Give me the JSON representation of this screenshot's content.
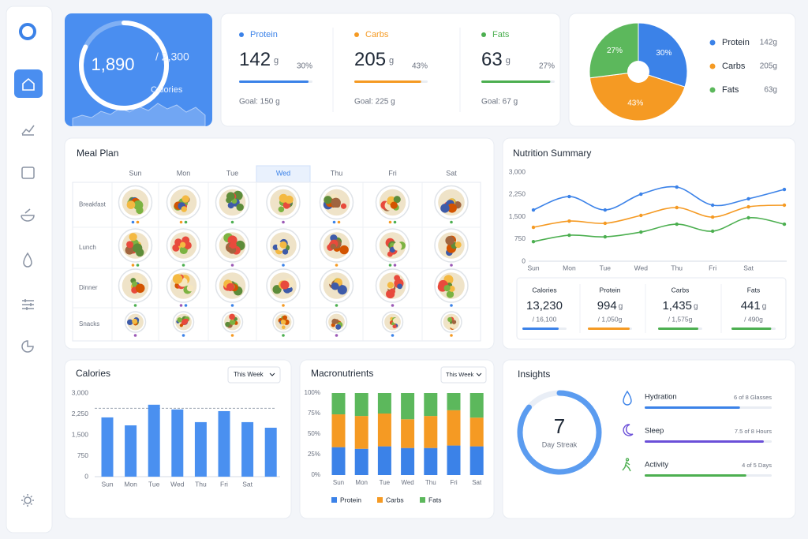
{
  "calorie_card": {
    "consumed": {
      "value": 1890,
      "label": "1,890"
    },
    "goal": {
      "value": 2300,
      "label": "/ 2,300"
    },
    "caption": "Calories"
  },
  "macros": [
    {
      "name": "Protein",
      "amount": 142,
      "unit": "g",
      "share": {
        "value": 30,
        "label": "30%"
      },
      "goal": {
        "value": 150,
        "label": "Goal: 150 g"
      },
      "color": "#3b82e8"
    },
    {
      "name": "Carbs",
      "amount": 205,
      "unit": "g",
      "share": {
        "value": 43,
        "label": "43%"
      },
      "goal": {
        "value": 225,
        "label": "Goal: 225 g"
      },
      "color": "#f59a23"
    },
    {
      "name": "Fats",
      "amount": 63,
      "unit": "g",
      "share": {
        "value": 27,
        "label": "27%"
      },
      "goal": {
        "value": 67,
        "label": "Goal: 67 g"
      },
      "color": "#4caf50"
    }
  ],
  "meal_plan": {
    "title": "Meal Plan",
    "days": [
      "Sun",
      "Mon",
      "Tue",
      "Wed",
      "Thu",
      "Fri",
      "Sat"
    ],
    "selected_day": "Wed",
    "meals": [
      "Breakfast",
      "Lunch",
      "Dinner",
      "Snacks"
    ]
  },
  "nutrition_totals": [
    {
      "name": "Calories",
      "total": {
        "value": 13230,
        "label": "13,230"
      },
      "goal": {
        "value": 16100,
        "label": "/ 16,100"
      },
      "color": "#3b82e8"
    },
    {
      "name": "Protein",
      "total": 994,
      "unit": "g",
      "goal": {
        "value": 1050,
        "label": "/ 1,050g"
      },
      "color": "#f59a23"
    },
    {
      "name": "Carbs",
      "total": {
        "value": 1435,
        "label": "1,435"
      },
      "unit": "g",
      "goal": {
        "value": 1575,
        "label": "/ 1,575g"
      },
      "color": "#4caf50"
    },
    {
      "name": "Fats",
      "total": 441,
      "unit": "g",
      "goal": {
        "value": 490,
        "label": "/ 490g"
      },
      "color": "#4caf50"
    }
  ],
  "chart_data": [
    {
      "type": "pie",
      "categories": [
        "Protein",
        "Carbs",
        "Fats"
      ],
      "values": [
        30,
        43,
        27
      ],
      "value_labels": [
        "30%",
        "43%",
        "27%"
      ],
      "colors": [
        "#3b82e8",
        "#f59a23",
        "#5cb85c"
      ],
      "legend_values": [
        "142g",
        "205g",
        "63g"
      ],
      "legend": "right"
    },
    {
      "type": "line",
      "title": "Nutrition Summary",
      "categories": [
        "Sun",
        "Mon",
        "Tue",
        "Wed",
        "Thu",
        "Fri",
        "Sat",
        null
      ],
      "ylim": [
        0,
        3000
      ],
      "yticks": [
        0,
        750,
        {
          "value": 1500,
          "label": "1,500"
        },
        {
          "value": 2250,
          "label": "2,250"
        },
        {
          "value": 3000,
          "label": "3,000"
        }
      ],
      "series": [
        {
          "color": "#3b82e8",
          "values": [
            1725,
            2175,
            1725,
            2255,
            2495,
            1885,
            2100,
            2415
          ]
        },
        {
          "color": "#f59a23",
          "values": [
            1140,
            1350,
            1275,
            1540,
            1805,
            1485,
            1830,
            1885
          ]
        },
        {
          "color": "#4caf50",
          "values": [
            660,
            875,
            820,
            980,
            1245,
            1010,
            1460,
            1245
          ]
        }
      ]
    },
    {
      "type": "bar",
      "title": "Calories",
      "control": "This Week",
      "categories": [
        "Sun",
        "Mon",
        "Tue",
        "Wed",
        "Thu",
        "Fri",
        "Sat",
        null
      ],
      "values": [
        2125,
        1840,
        2580,
        2410,
        1955,
        2350,
        1955,
        1755
      ],
      "color": "#4a90f0",
      "target": 2450,
      "ylim": [
        0,
        3000
      ],
      "yticks": [
        0,
        750,
        {
          "value": 1500,
          "label": "1,500"
        },
        {
          "value": 2250,
          "label": "2,250"
        },
        {
          "value": 3000,
          "label": "3,000"
        }
      ]
    },
    {
      "type": "stacked_bar",
      "title": "Macronutrients",
      "control": "This Week",
      "categories": [
        "Sun",
        "Mon",
        "Tue",
        "Wed",
        "Thu",
        "Fri",
        "Sat"
      ],
      "ylim": [
        0,
        100
      ],
      "yticks": [
        {
          "value": 0,
          "label": "0%"
        },
        {
          "value": 25,
          "label": "25%"
        },
        {
          "value": 50,
          "label": "50%"
        },
        {
          "value": 75,
          "label": "75%"
        },
        {
          "value": 100,
          "label": "100%"
        }
      ],
      "series": [
        {
          "name": "Protein",
          "color": "#3b82e8",
          "values": [
            34,
            32,
            35,
            33,
            33,
            36,
            35
          ]
        },
        {
          "name": "Carbs",
          "color": "#f59a23",
          "values": [
            40,
            40,
            40,
            35,
            39,
            43,
            35
          ]
        },
        {
          "name": "Fats",
          "color": "#5cb85c",
          "values": [
            26,
            28,
            25,
            32,
            28,
            21,
            30
          ]
        }
      ],
      "legend": "bottom"
    }
  ],
  "insights": {
    "title": "Insights",
    "streak": {
      "value": 7,
      "caption": "Day Streak"
    },
    "items": [
      {
        "name": "Hydration",
        "value": 6,
        "goal": 8,
        "label": "6 of 8 Glasses",
        "color": "#3b82e8"
      },
      {
        "name": "Sleep",
        "value": 7.5,
        "goal": 8,
        "label": "7.5 of 8 Hours",
        "color": "#6b4fd8"
      },
      {
        "name": "Activity",
        "value": 4,
        "goal": 5,
        "label": "4 of 5 Days",
        "color": "#4caf50"
      }
    ]
  }
}
